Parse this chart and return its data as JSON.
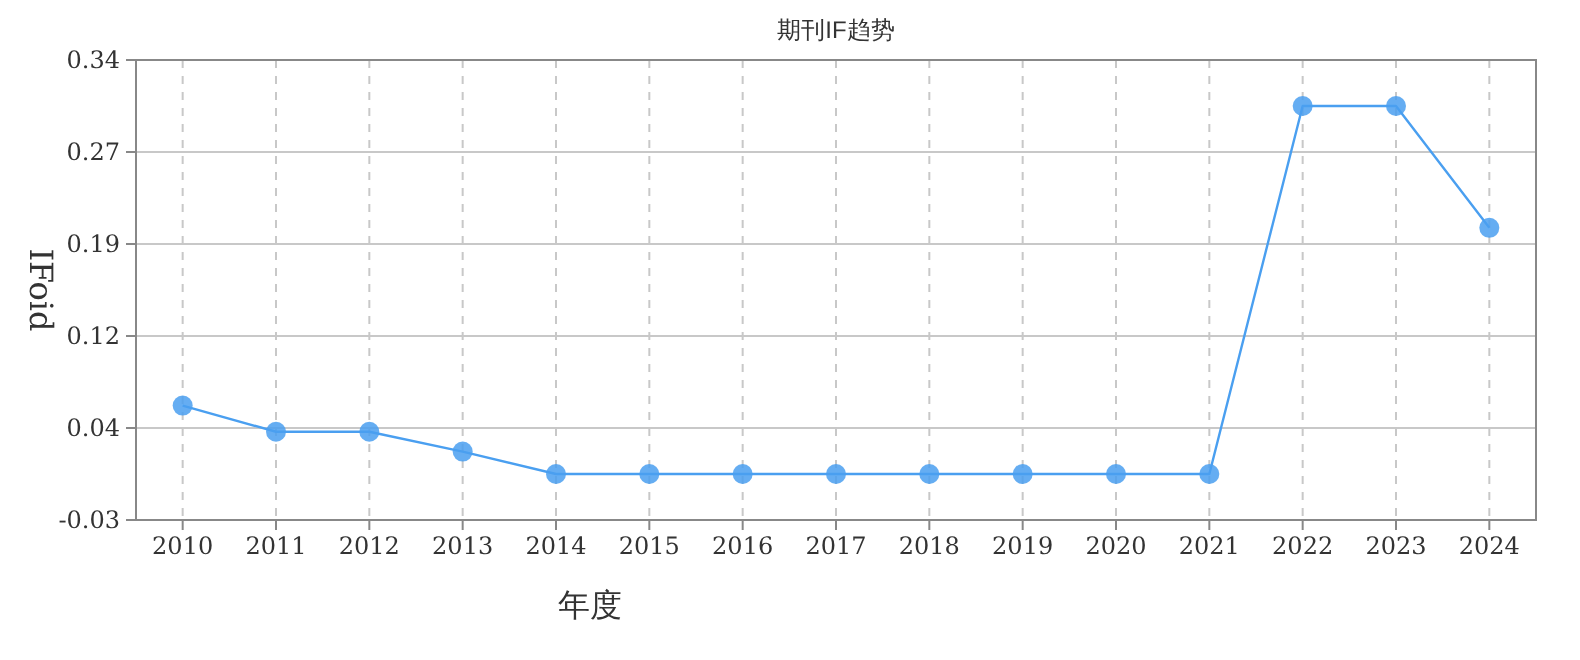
{
  "chart_data": {
    "type": "line",
    "title": "期刊IF趋势",
    "xlabel": "年度",
    "ylabel": "IFoid",
    "categories": [
      "2010",
      "2011",
      "2012",
      "2013",
      "2014",
      "2015",
      "2016",
      "2017",
      "2018",
      "2019",
      "2020",
      "2021",
      "2022",
      "2023",
      "2024"
    ],
    "series": [
      {
        "color": "#4a9ff0",
        "values": [
          0.062,
          0.041,
          0.041,
          0.025,
          0.007,
          0.007,
          0.007,
          0.007,
          0.007,
          0.007,
          0.007,
          0.007,
          0.303,
          0.303,
          0.205
        ]
      }
    ],
    "ylim": [
      -0.03,
      0.34
    ],
    "yticks": [
      {
        "value": -0.03,
        "label": "-0.03"
      },
      {
        "value": 0.044,
        "label": "0.04"
      },
      {
        "value": 0.118,
        "label": "0.12"
      },
      {
        "value": 0.192,
        "label": "0.19"
      },
      {
        "value": 0.266,
        "label": "0.27"
      },
      {
        "value": 0.34,
        "label": "0.34"
      }
    ],
    "grid": true,
    "marker": "circle"
  }
}
